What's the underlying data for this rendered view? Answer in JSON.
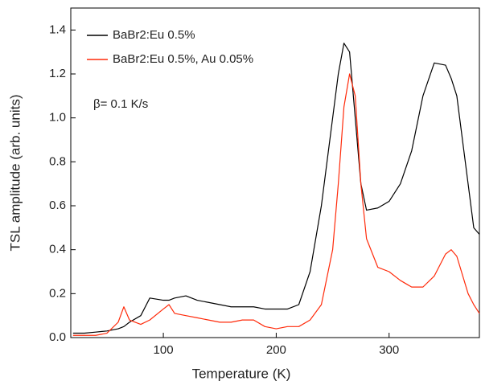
{
  "chart_data": {
    "type": "line",
    "xlabel": "Temperature (K)",
    "ylabel": "TSL amplitude (arb. units)",
    "annotation": "β= 0.1 K/s",
    "x": [
      20,
      30,
      40,
      50,
      60,
      65,
      70,
      80,
      88,
      100,
      105,
      110,
      120,
      130,
      140,
      150,
      160,
      170,
      180,
      190,
      200,
      210,
      220,
      230,
      240,
      250,
      255,
      260,
      265,
      270,
      275,
      280,
      290,
      300,
      310,
      320,
      330,
      340,
      350,
      355,
      360,
      370,
      375,
      380
    ],
    "series": [
      {
        "name": "BaBr2:Eu 0.5%",
        "color": "#000000",
        "values": [
          0.02,
          0.02,
          0.025,
          0.03,
          0.04,
          0.05,
          0.07,
          0.1,
          0.18,
          0.17,
          0.17,
          0.18,
          0.19,
          0.17,
          0.16,
          0.15,
          0.14,
          0.14,
          0.14,
          0.13,
          0.13,
          0.13,
          0.15,
          0.3,
          0.6,
          1.0,
          1.2,
          1.34,
          1.3,
          1.0,
          0.7,
          0.58,
          0.59,
          0.62,
          0.7,
          0.85,
          1.1,
          1.25,
          1.24,
          1.18,
          1.1,
          0.7,
          0.5,
          0.47
        ]
      },
      {
        "name": "BaBr2:Eu 0.5%, Au 0.05%",
        "color": "#ff2a0a",
        "values": [
          0.01,
          0.01,
          0.01,
          0.02,
          0.07,
          0.14,
          0.08,
          0.06,
          0.08,
          0.13,
          0.15,
          0.11,
          0.1,
          0.09,
          0.08,
          0.07,
          0.07,
          0.08,
          0.08,
          0.05,
          0.04,
          0.05,
          0.05,
          0.08,
          0.15,
          0.4,
          0.7,
          1.05,
          1.2,
          1.1,
          0.7,
          0.45,
          0.32,
          0.3,
          0.26,
          0.23,
          0.23,
          0.28,
          0.38,
          0.4,
          0.37,
          0.2,
          0.15,
          0.11
        ]
      }
    ],
    "xlim": [
      18,
      380
    ],
    "xticks": [
      100,
      200,
      300
    ],
    "ylim": [
      0,
      1.5
    ],
    "yticks": [
      {
        "value": 0,
        "label": "0.0"
      },
      {
        "value": 0.2,
        "label": "0.2"
      },
      {
        "value": 0.4,
        "label": "0.4"
      },
      {
        "value": 0.6,
        "label": "0.6"
      },
      {
        "value": 0.8,
        "label": "0.8"
      },
      {
        "value": 1.0,
        "label": "1.0"
      },
      {
        "value": 1.2,
        "label": "1.2"
      },
      {
        "value": 1.4,
        "label": "1.4"
      }
    ],
    "legend": "upper left",
    "grid": false
  }
}
